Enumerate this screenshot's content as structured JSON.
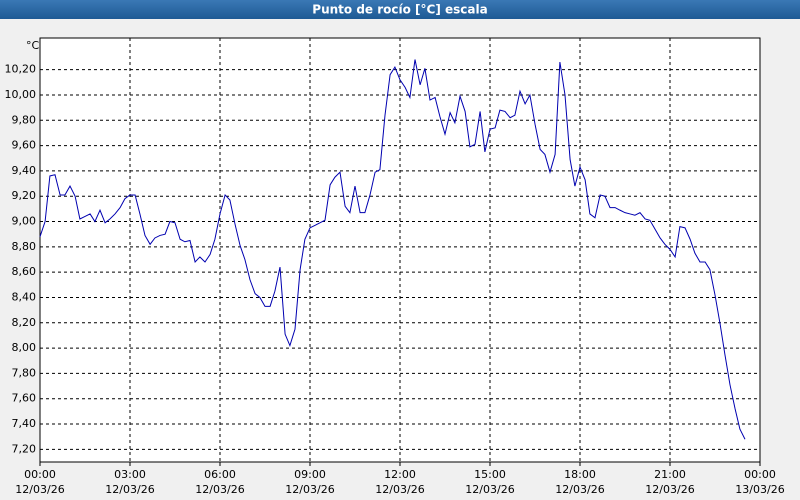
{
  "chart_data": {
    "type": "line",
    "title": "Punto de rocío [°C] escala",
    "ylabel": "°C",
    "color": "#0000b0",
    "grid": true,
    "xlim": [
      0,
      24
    ],
    "ylim": [
      7.1,
      10.45
    ],
    "xticks": [
      {
        "value": 0,
        "label": "00:00",
        "date": "12/03/26"
      },
      {
        "value": 3,
        "label": "03:00",
        "date": "12/03/26"
      },
      {
        "value": 6,
        "label": "06:00",
        "date": "12/03/26"
      },
      {
        "value": 9,
        "label": "09:00",
        "date": "12/03/26"
      },
      {
        "value": 12,
        "label": "12:00",
        "date": "12/03/26"
      },
      {
        "value": 15,
        "label": "15:00",
        "date": "12/03/26"
      },
      {
        "value": 18,
        "label": "18:00",
        "date": "12/03/26"
      },
      {
        "value": 21,
        "label": "21:00",
        "date": "12/03/26"
      },
      {
        "value": 24,
        "label": "00:00",
        "date": "13/03/26"
      }
    ],
    "yticks": [
      {
        "value": 7.2,
        "label": "7,20"
      },
      {
        "value": 7.4,
        "label": "7,40"
      },
      {
        "value": 7.6,
        "label": "7,60"
      },
      {
        "value": 7.8,
        "label": "7,80"
      },
      {
        "value": 8.0,
        "label": "8,00"
      },
      {
        "value": 8.2,
        "label": "8,20"
      },
      {
        "value": 8.4,
        "label": "8,40"
      },
      {
        "value": 8.6,
        "label": "8,60"
      },
      {
        "value": 8.8,
        "label": "8,80"
      },
      {
        "value": 9.0,
        "label": "9,00"
      },
      {
        "value": 9.2,
        "label": "9,20"
      },
      {
        "value": 9.4,
        "label": "9,40"
      },
      {
        "value": 9.6,
        "label": "9,60"
      },
      {
        "value": 9.8,
        "label": "9,80"
      },
      {
        "value": 10.0,
        "label": "10,00"
      },
      {
        "value": 10.2,
        "label": "10,20"
      }
    ],
    "x": [
      0,
      0.17,
      0.33,
      0.5,
      0.67,
      0.83,
      1,
      1.17,
      1.33,
      1.5,
      1.67,
      1.83,
      2,
      2.17,
      2.33,
      2.5,
      2.67,
      2.83,
      3,
      3.17,
      3.33,
      3.5,
      3.67,
      3.83,
      4,
      4.17,
      4.33,
      4.5,
      4.67,
      4.83,
      5,
      5.17,
      5.33,
      5.5,
      5.67,
      5.83,
      6,
      6.17,
      6.33,
      6.5,
      6.67,
      6.83,
      7,
      7.17,
      7.33,
      7.5,
      7.67,
      7.83,
      8,
      8.17,
      8.33,
      8.5,
      8.67,
      8.83,
      9,
      9.17,
      9.33,
      9.5,
      9.67,
      9.83,
      10,
      10.17,
      10.33,
      10.5,
      10.67,
      10.83,
      11,
      11.17,
      11.33,
      11.5,
      11.67,
      11.83,
      12,
      12.17,
      12.33,
      12.5,
      12.67,
      12.83,
      13,
      13.17,
      13.33,
      13.5,
      13.67,
      13.83,
      14,
      14.17,
      14.33,
      14.5,
      14.67,
      14.83,
      15,
      15.17,
      15.33,
      15.5,
      15.67,
      15.83,
      16,
      16.17,
      16.33,
      16.5,
      16.67,
      16.83,
      17,
      17.17,
      17.33,
      17.5,
      17.67,
      17.83,
      18,
      18.17,
      18.33,
      18.5,
      18.67,
      18.83,
      19,
      19.17,
      19.33,
      19.5,
      19.67,
      19.83,
      20,
      20.17,
      20.33,
      20.5,
      20.67,
      20.83,
      21,
      21.17,
      21.33,
      21.5,
      21.67,
      21.83,
      22,
      22.17,
      22.33,
      22.5,
      22.67,
      22.83,
      23,
      23.17,
      23.33,
      23.5
    ],
    "values": [
      8.88,
      9.0,
      9.36,
      9.37,
      9.21,
      9.21,
      9.28,
      9.2,
      9.02,
      9.04,
      9.06,
      9.0,
      9.09,
      8.99,
      9.02,
      9.06,
      9.11,
      9.18,
      9.21,
      9.21,
      9.06,
      8.89,
      8.82,
      8.87,
      8.89,
      8.9,
      9.0,
      8.99,
      8.86,
      8.84,
      8.85,
      8.68,
      8.72,
      8.68,
      8.74,
      8.86,
      9.06,
      9.21,
      9.17,
      8.98,
      8.81,
      8.7,
      8.54,
      8.43,
      8.4,
      8.33,
      8.33,
      8.45,
      8.64,
      8.11,
      8.02,
      8.15,
      8.62,
      8.86,
      8.95,
      8.97,
      8.99,
      9.01,
      9.29,
      9.35,
      9.39,
      9.12,
      9.07,
      9.28,
      9.07,
      9.07,
      9.21,
      9.39,
      9.41,
      9.84,
      10.16,
      10.22,
      10.12,
      10.06,
      9.98,
      10.28,
      10.08,
      10.21,
      9.96,
      9.98,
      9.83,
      9.69,
      9.86,
      9.78,
      9.99,
      9.87,
      9.59,
      9.61,
      9.87,
      9.55,
      9.73,
      9.74,
      9.88,
      9.87,
      9.82,
      9.84,
      10.03,
      9.93,
      10.0,
      9.77,
      9.57,
      9.53,
      9.39,
      9.53,
      10.26,
      10.0,
      9.49,
      9.28,
      9.43,
      9.33,
      9.06,
      9.03,
      9.21,
      9.2,
      9.11,
      9.11,
      9.09,
      9.07,
      9.06,
      9.05,
      9.07,
      9.02,
      9.01,
      8.94,
      8.87,
      8.82,
      8.78,
      8.72,
      8.96,
      8.95,
      8.86,
      8.75,
      8.68,
      8.68,
      8.62,
      8.42,
      8.19,
      7.95,
      7.71,
      7.52,
      7.36,
      7.28
    ]
  }
}
